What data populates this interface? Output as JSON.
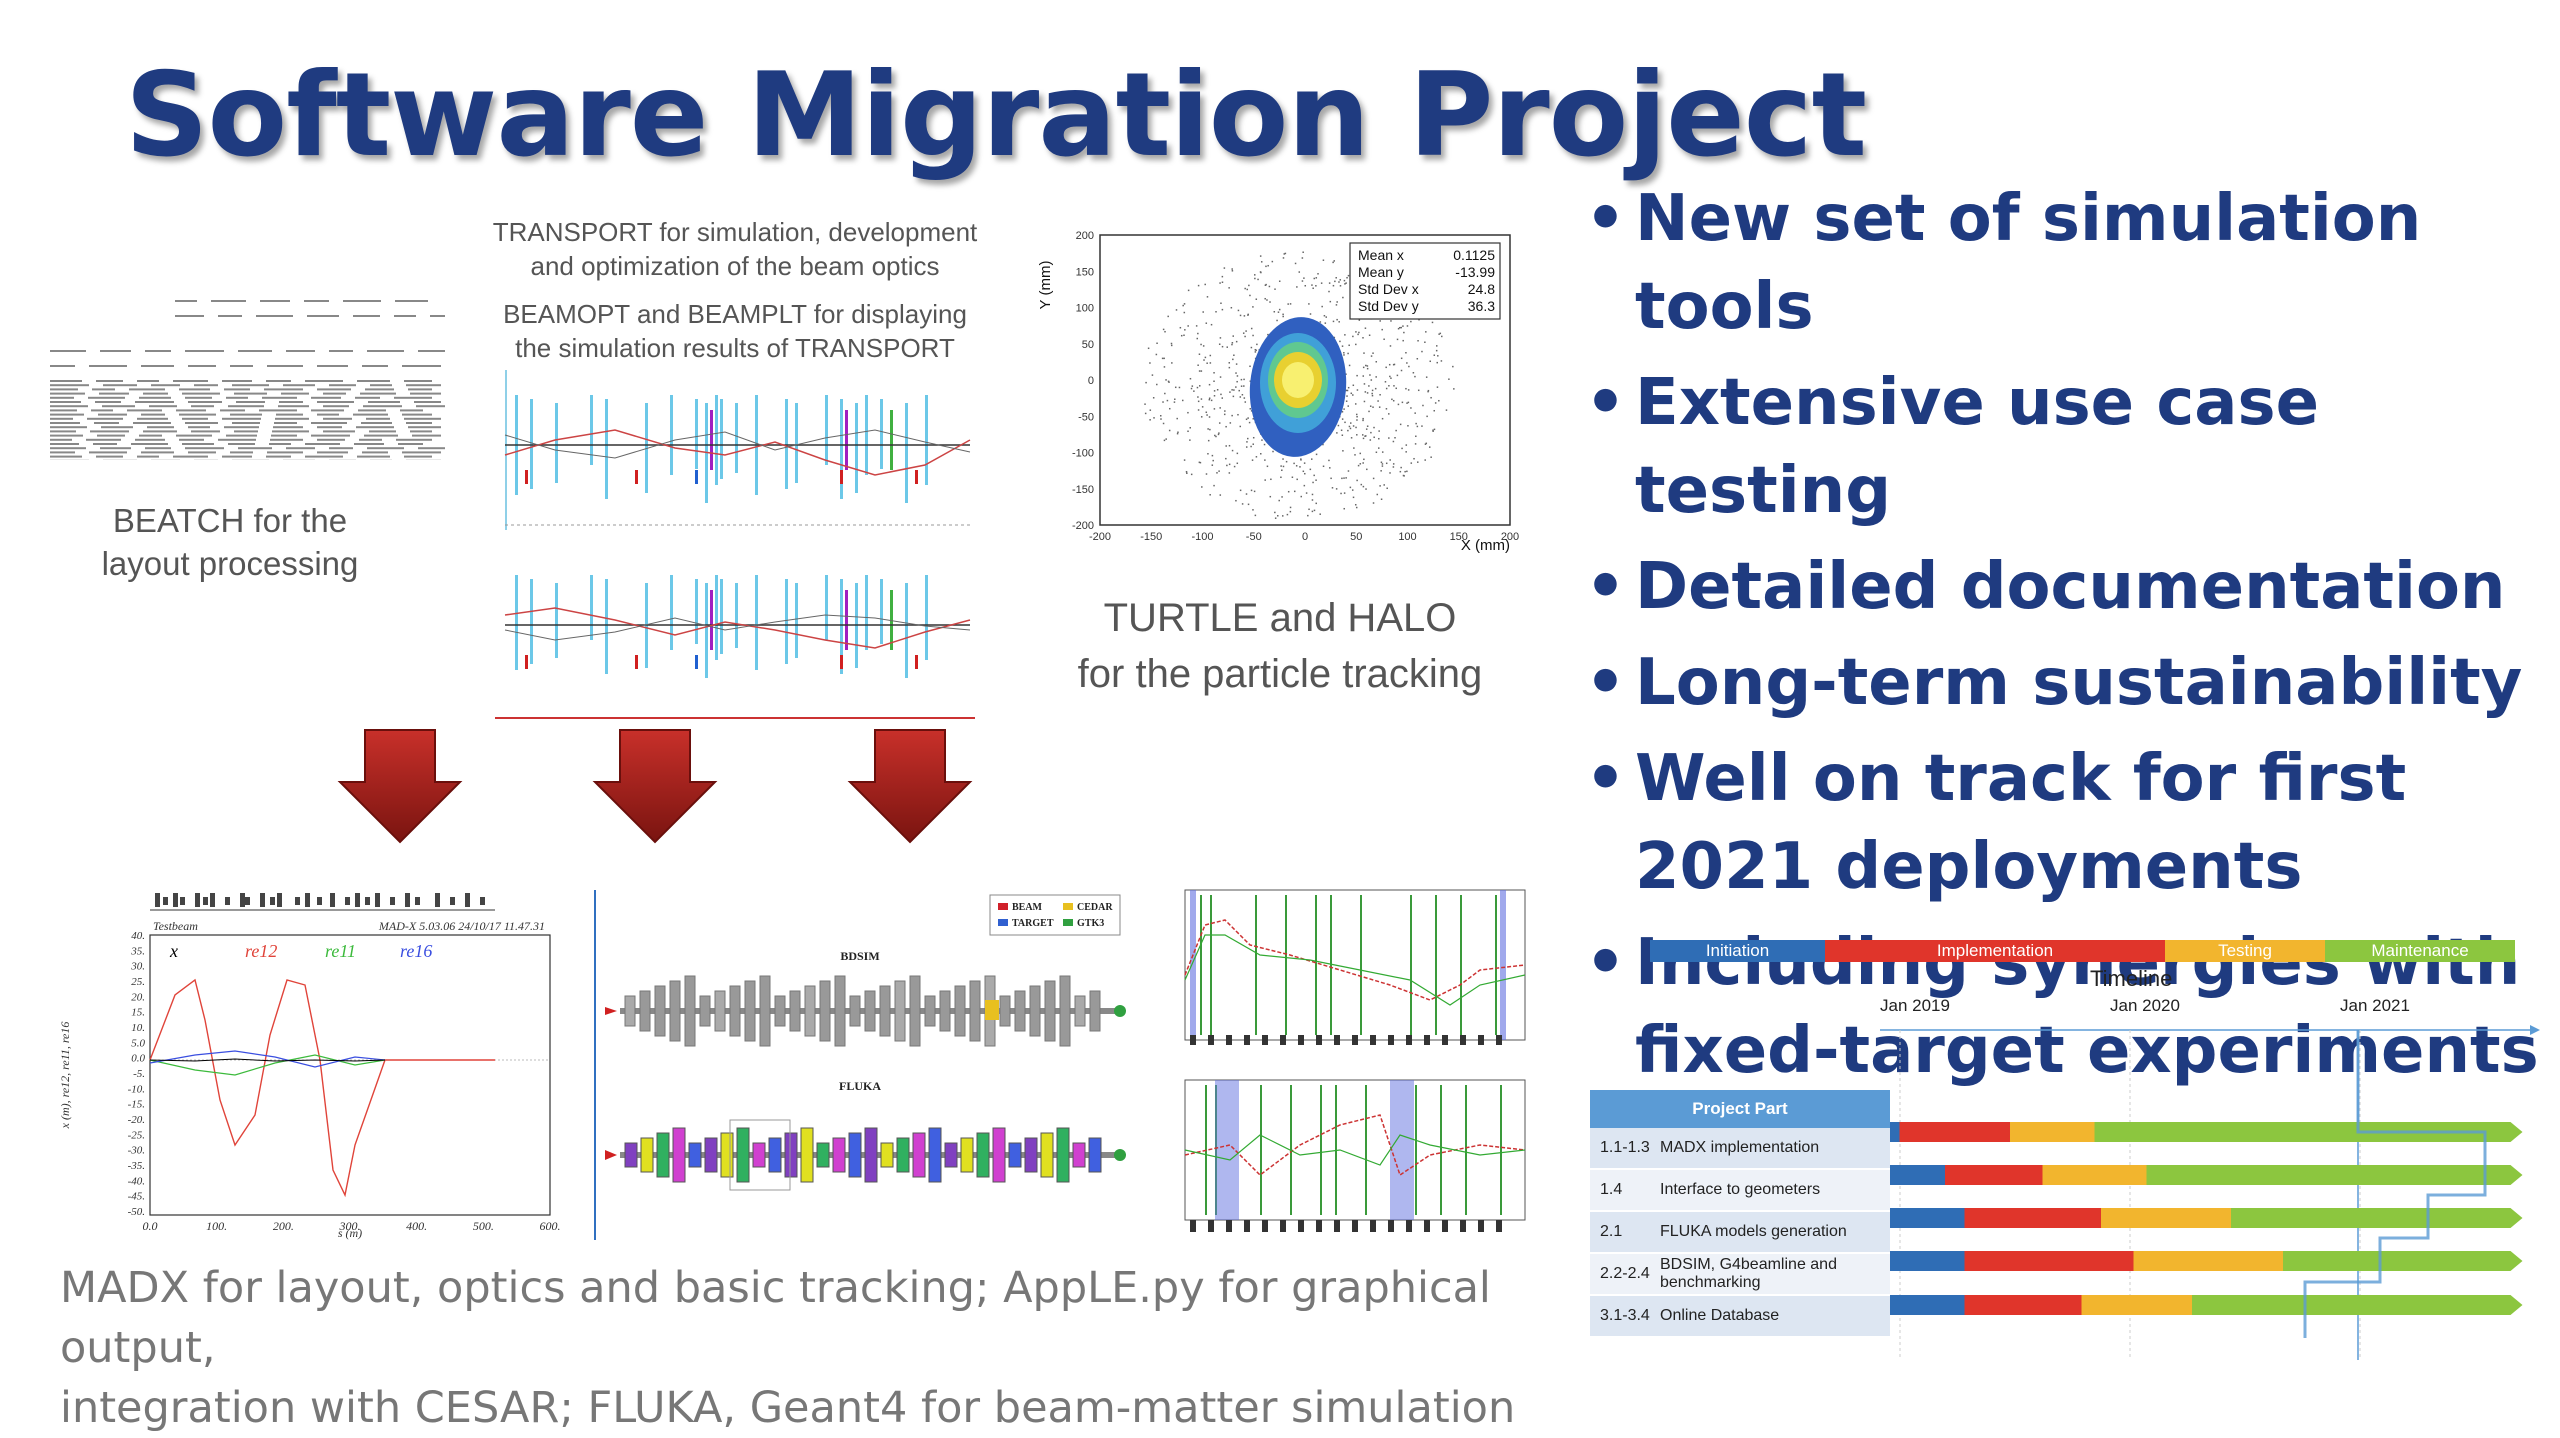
{
  "title": "Software Migration Project",
  "captions": {
    "beatch": [
      "BEATCH for the",
      "layout processing"
    ],
    "transport": [
      "TRANSPORT for simulation, development",
      "and optimization of the beam optics"
    ],
    "beamopt": [
      "BEAMOPT and BEAMPLT for displaying",
      "the simulation results of TRANSPORT"
    ],
    "turtle": [
      "TURTLE and HALO",
      "for the particle tracking"
    ],
    "bottom": [
      "MADX for layout, optics and basic tracking; AppLE.py for graphical output,",
      "integration with CESAR; FLUKA, Geant4 for beam-matter simulation"
    ]
  },
  "bullets": [
    "New set of simulation tools",
    "Extensive use case testing",
    "Detailed documentation",
    "Long-term sustainability",
    "Well on track for first 2021 deployments",
    "Including synergies with fixed-target experiments"
  ],
  "histogram": {
    "stats": [
      {
        "label": "Mean x",
        "value": "0.1125"
      },
      {
        "label": "Mean y",
        "value": "-13.99"
      },
      {
        "label": "Std Dev x",
        "value": "24.8"
      },
      {
        "label": "Std Dev y",
        "value": "36.3"
      }
    ],
    "xlabel": "X (mm)",
    "ylabel": "Y (mm)",
    "xticks": [
      "-200",
      "-150",
      "-100",
      "-50",
      "0",
      "50",
      "100",
      "150",
      "200"
    ],
    "yticks": [
      "200",
      "150",
      "100",
      "50",
      "0",
      "-50",
      "-100",
      "-150",
      "-200"
    ]
  },
  "madx_plot": {
    "header": "Testbeam",
    "stamp": "MAD-X 5.03.06  24/10/17 11.47.31",
    "series": [
      "x",
      "re12",
      "re11",
      "re16"
    ],
    "series_colors": [
      "#000000",
      "#e0443a",
      "#3cba3c",
      "#3a4ee0"
    ],
    "ylabel": "x (m), re12, re11, re16",
    "xlabel": "s (m)",
    "yticks": [
      "40.",
      "35.",
      "30.",
      "25.",
      "20.",
      "15.",
      "10.",
      "5.0",
      "0.0",
      "-5.",
      "-10.",
      "-15.",
      "-20.",
      "-25.",
      "-30.",
      "-35.",
      "-40.",
      "-45.",
      "-50."
    ],
    "xticks": [
      "0.0",
      "100.",
      "200.",
      "300.",
      "400.",
      "500.",
      "600."
    ]
  },
  "geometry": {
    "bdsim": "BDSIM",
    "fluka": "FLUKA",
    "legend": [
      {
        "label": "BEAM",
        "color": "#d0202a"
      },
      {
        "label": "CEDAR",
        "color": "#e8c020"
      },
      {
        "label": "TARGET",
        "color": "#3060d0"
      },
      {
        "label": "GTK3",
        "color": "#30a040"
      }
    ]
  },
  "timeline": {
    "phases": [
      {
        "label": "Initiation",
        "color": "#2f6db5"
      },
      {
        "label": "Implementation",
        "color": "#e0352b"
      },
      {
        "label": "Testing",
        "color": "#f2b52e"
      },
      {
        "label": "Maintenance",
        "color": "#8cc63f"
      }
    ],
    "title": "Timeline",
    "years": [
      "Jan 2019",
      "Jan 2020",
      "Jan 2021"
    ],
    "table_header": "Project Part",
    "rows": [
      {
        "num": "1.1-1.3",
        "name": "MADX implementation",
        "segments": [
          0.03,
          0.2,
          0.33,
          0.97
        ]
      },
      {
        "num": "1.4",
        "name": "Interface to geometers",
        "segments": [
          0.1,
          0.25,
          0.41,
          0.97
        ]
      },
      {
        "num": "2.1",
        "name": "FLUKA models generation",
        "segments": [
          0.13,
          0.34,
          0.54,
          0.97
        ]
      },
      {
        "num": "2.2-2.4",
        "name": "BDSIM, G4beamline and benchmarking",
        "segments": [
          0.13,
          0.39,
          0.62,
          0.97
        ]
      },
      {
        "num": "3.1-3.4",
        "name": "Online Database",
        "segments": [
          0.13,
          0.31,
          0.48,
          0.97
        ]
      }
    ],
    "colors": {
      "blue": "#2f6db5",
      "red": "#e0352b",
      "yellow": "#f2b52e",
      "green": "#8cc63f"
    }
  }
}
